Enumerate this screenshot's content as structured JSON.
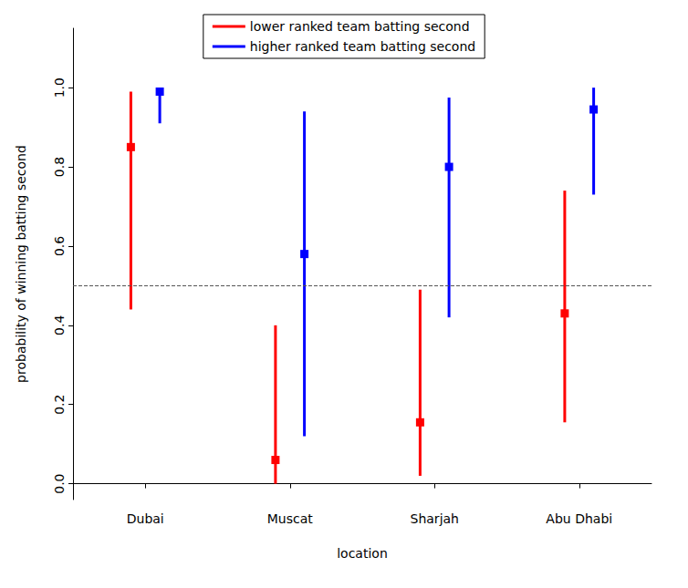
{
  "chart_data": {
    "type": "errorbar",
    "x_label": "location",
    "y_label": "probability of winning batting second",
    "categories": [
      "Dubai",
      "Muscat",
      "Sharjah",
      "Abu Dhabi"
    ],
    "series": [
      {
        "name": "lower ranked team batting second",
        "color": "#ff0000",
        "marker": "square",
        "values": [
          0.85,
          0.06,
          0.155,
          0.43
        ],
        "lower": [
          0.44,
          0.0,
          0.02,
          0.155
        ],
        "upper": [
          0.99,
          0.4,
          0.49,
          0.74
        ]
      },
      {
        "name": "higher ranked team batting second",
        "color": "#0000ff",
        "marker": "square",
        "values": [
          0.99,
          0.58,
          0.8,
          0.945
        ],
        "lower": [
          0.91,
          0.12,
          0.42,
          0.73
        ],
        "upper": [
          1.0,
          0.94,
          0.975,
          1.0
        ]
      }
    ],
    "ylim": [
      -0.04,
      1.15
    ],
    "yticks": [
      {
        "value": 0,
        "label": "0.0"
      },
      0.2,
      0.4,
      0.6,
      0.8,
      {
        "value": 1,
        "label": "1.0"
      }
    ],
    "reference_line": 0.5,
    "legend": "top",
    "grid": false
  }
}
